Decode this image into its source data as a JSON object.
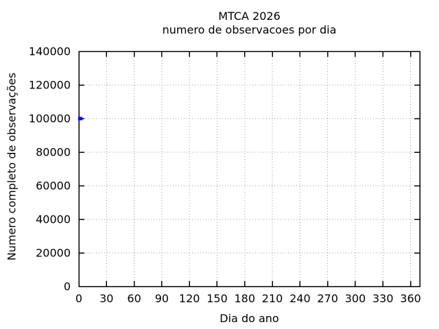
{
  "figure": {
    "title_line1": "MTCA 2026",
    "title_line2": "numero de observacoes por dia",
    "xlabel": "Dia do ano",
    "ylabel": "Numero completo de observações"
  },
  "colors": {
    "background": "#ffffff",
    "border": "#000000",
    "grid": "#999999",
    "tick_text": "#000000",
    "series": "#0000ff"
  },
  "chart_data": {
    "type": "line",
    "title": "MTCA 2026",
    "subtitle": "numero de observacoes por dia",
    "xlabel": "Dia do ano",
    "ylabel": "Numero completo de observações",
    "xlim": [
      0,
      370
    ],
    "ylim": [
      0,
      140000
    ],
    "xticks": [
      0,
      30,
      60,
      90,
      120,
      150,
      180,
      210,
      240,
      270,
      300,
      330,
      360
    ],
    "yticks": [
      0,
      20000,
      40000,
      60000,
      80000,
      100000,
      120000,
      140000
    ],
    "grid": true,
    "grid_style": "dotted",
    "legend": "none",
    "series": [
      {
        "name": "numero de observacoes",
        "color": "#0000ff",
        "marker": "filled-square",
        "x": [
          1,
          2
        ],
        "y": [
          100000,
          100000
        ]
      }
    ]
  }
}
